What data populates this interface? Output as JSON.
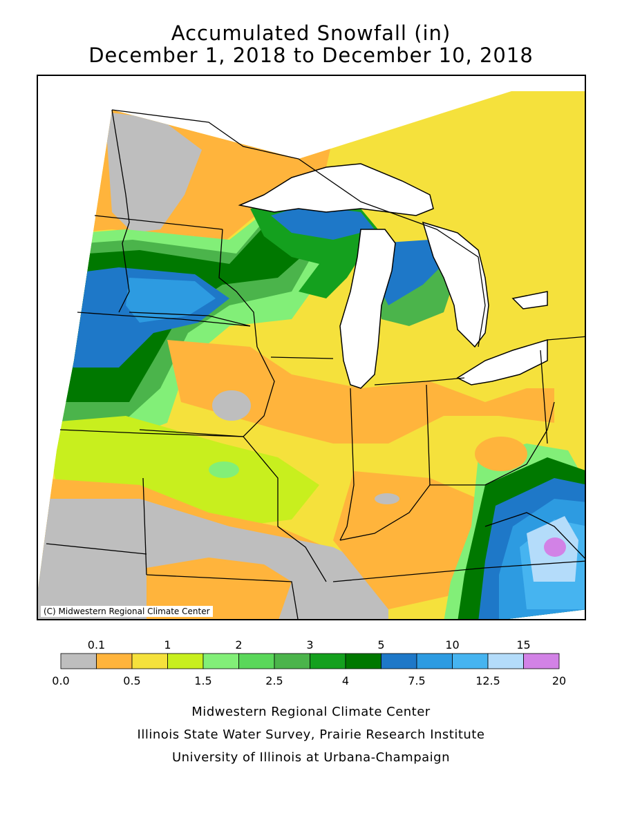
{
  "title": {
    "line1": "Accumulated Snowfall (in)",
    "line2": "December 1, 2018 to December 10, 2018"
  },
  "map": {
    "copyright": "(C) Midwestern Regional Climate Center",
    "colors": {
      "grey": "#bebebe",
      "orange": "#ffb43c",
      "yellow": "#f5e13c",
      "lime": "#c8ef1e",
      "lightgreen": "#82ef78",
      "green1": "#5ad75a",
      "green2": "#4bb44b",
      "green3": "#14a01e",
      "darkgreen": "#007800",
      "blue1": "#1e78c8",
      "blue2": "#2d9be1",
      "blue3": "#46b4f0",
      "paleblue": "#b4dcfa",
      "violet": "#d282e6",
      "lake": "#ffffff"
    }
  },
  "legend": {
    "top_labels": [
      "0.1",
      "1",
      "2",
      "3",
      "5",
      "10",
      "15"
    ],
    "bottom_labels": [
      "0.0",
      "0.5",
      "1.5",
      "2.5",
      "4",
      "7.5",
      "12.5",
      "20"
    ],
    "bins": [
      "#bebebe",
      "#ffb43c",
      "#f5e13c",
      "#c8ef1e",
      "#82ef78",
      "#5ad75a",
      "#4bb44b",
      "#14a01e",
      "#007800",
      "#1e78c8",
      "#2d9be1",
      "#46b4f0",
      "#b4dcfa",
      "#d282e6"
    ]
  },
  "footer": {
    "line1": "Midwestern Regional Climate Center",
    "line2": "Illinois State Water Survey, Prairie Research Institute",
    "line3": "University of Illinois at Urbana-Champaign"
  }
}
